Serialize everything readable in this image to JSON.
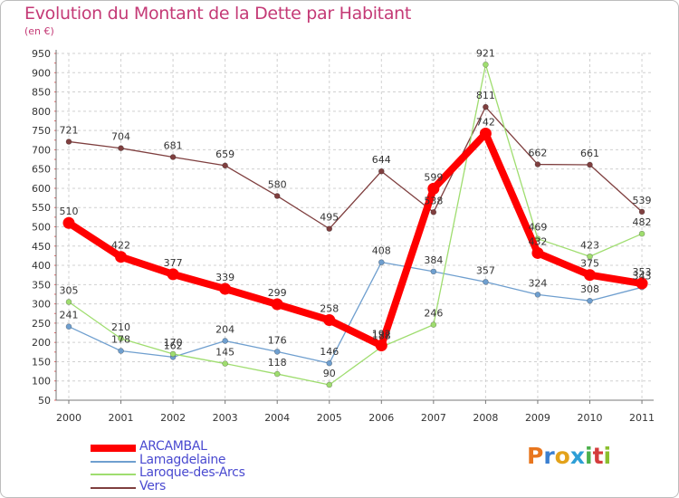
{
  "header": {
    "title": "Evolution du Montant de la Dette par Habitant",
    "subtitle": "(en €)"
  },
  "logo": {
    "text": "Proxiti",
    "colors": [
      "#e8761e",
      "#3a7fd0",
      "#e3a21a",
      "#2e9fd6",
      "#4cb04c",
      "#d43c3c",
      "#8bbf2e"
    ]
  },
  "chart_data": {
    "type": "line",
    "title": "Evolution du Montant de la Dette par Habitant",
    "subtitle": "(en €)",
    "xlabel": "",
    "ylabel": "",
    "x": [
      "2000",
      "2001",
      "2002",
      "2003",
      "2004",
      "2005",
      "2006",
      "2007",
      "2008",
      "2009",
      "2010",
      "2011"
    ],
    "ylim": [
      50,
      950
    ],
    "yticks": [
      50,
      100,
      150,
      200,
      250,
      300,
      350,
      400,
      450,
      500,
      550,
      600,
      650,
      700,
      750,
      800,
      850,
      900,
      950
    ],
    "grid": "horizontal dashed",
    "legend_position": "bottom-left",
    "series": [
      {
        "name": "ARCAMBAL",
        "color": "#ff0000",
        "values": [
          510,
          422,
          377,
          339,
          299,
          258,
          192,
          599,
          742,
          432,
          375,
          353
        ]
      },
      {
        "name": "Lamagdelaine",
        "color": "#6f9fcf",
        "values": [
          241,
          178,
          162,
          204,
          176,
          146,
          408,
          384,
          357,
          324,
          308,
          343
        ]
      },
      {
        "name": "Laroque-des-Arcs",
        "color": "#9fdd6f",
        "values": [
          305,
          210,
          170,
          145,
          118,
          90,
          188,
          246,
          921,
          469,
          423,
          482
        ]
      },
      {
        "name": "Vers",
        "color": "#7f3f3f",
        "values": [
          721,
          704,
          681,
          659,
          580,
          495,
          644,
          538,
          811,
          662,
          661,
          539
        ]
      }
    ]
  }
}
